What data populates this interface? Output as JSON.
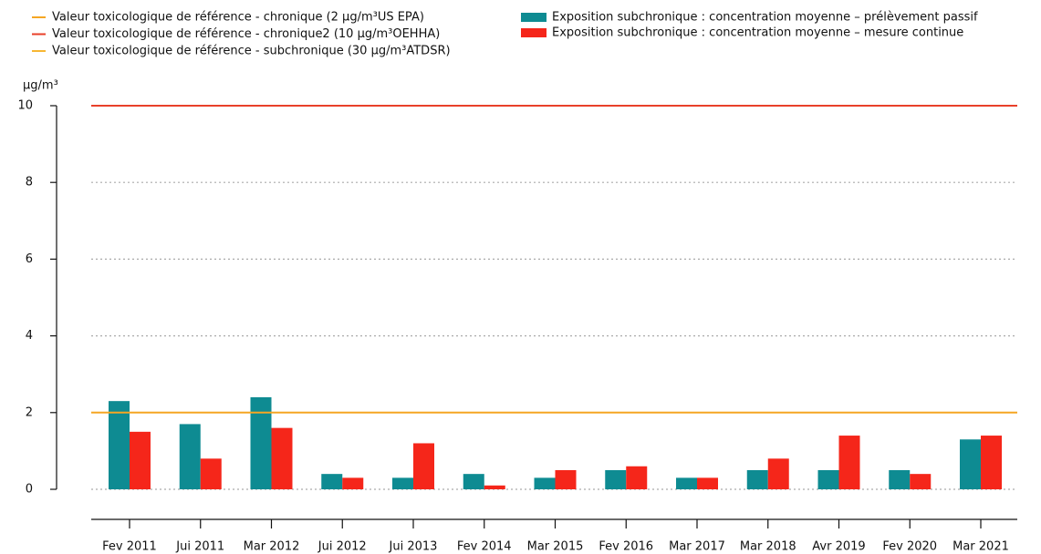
{
  "chart_data": {
    "type": "bar",
    "y_label": "µg/m³",
    "categories": [
      "Fev 2011",
      "Jui 2011",
      "Mar 2012",
      "Jui 2012",
      "Jui 2013",
      "Fev 2014",
      "Mar 2015",
      "Fev 2016",
      "Mar 2017",
      "Mar 2018",
      "Avr 2019",
      "Fev 2020",
      "Mar 2021"
    ],
    "series": [
      {
        "name": "Exposition subchronique : concentration moyenne – prélèvement passif",
        "color": "#0e8b92",
        "values": [
          2.3,
          1.7,
          2.4,
          0.4,
          0.3,
          0.4,
          0.3,
          0.5,
          0.3,
          0.5,
          0.5,
          0.5,
          1.3
        ]
      },
      {
        "name": "Exposition subchronique : concentration moyenne – mesure continue",
        "color": "#f5261a",
        "values": [
          1.5,
          0.8,
          1.6,
          0.3,
          1.2,
          0.1,
          0.5,
          0.6,
          0.3,
          0.8,
          1.4,
          0.4,
          1.4
        ]
      }
    ],
    "reference_lines": [
      {
        "name": "Valeur toxicologique de référence - chronique (2 µg/m³US EPA)",
        "color": "#f5a623",
        "value": 2
      },
      {
        "name": "Valeur toxicologique de référence - chronique2 (10 µg/m³OEHHA)",
        "color": "#e8402a",
        "value": 10
      },
      {
        "name": "Valeur toxicologique de référence - subchronique (30 µg/m³ATDSR)",
        "color": "#f7b733",
        "value": 30
      }
    ],
    "ylim": [
      0,
      10
    ],
    "yticks": [
      0,
      2,
      4,
      6,
      8,
      10
    ],
    "grid": true
  }
}
